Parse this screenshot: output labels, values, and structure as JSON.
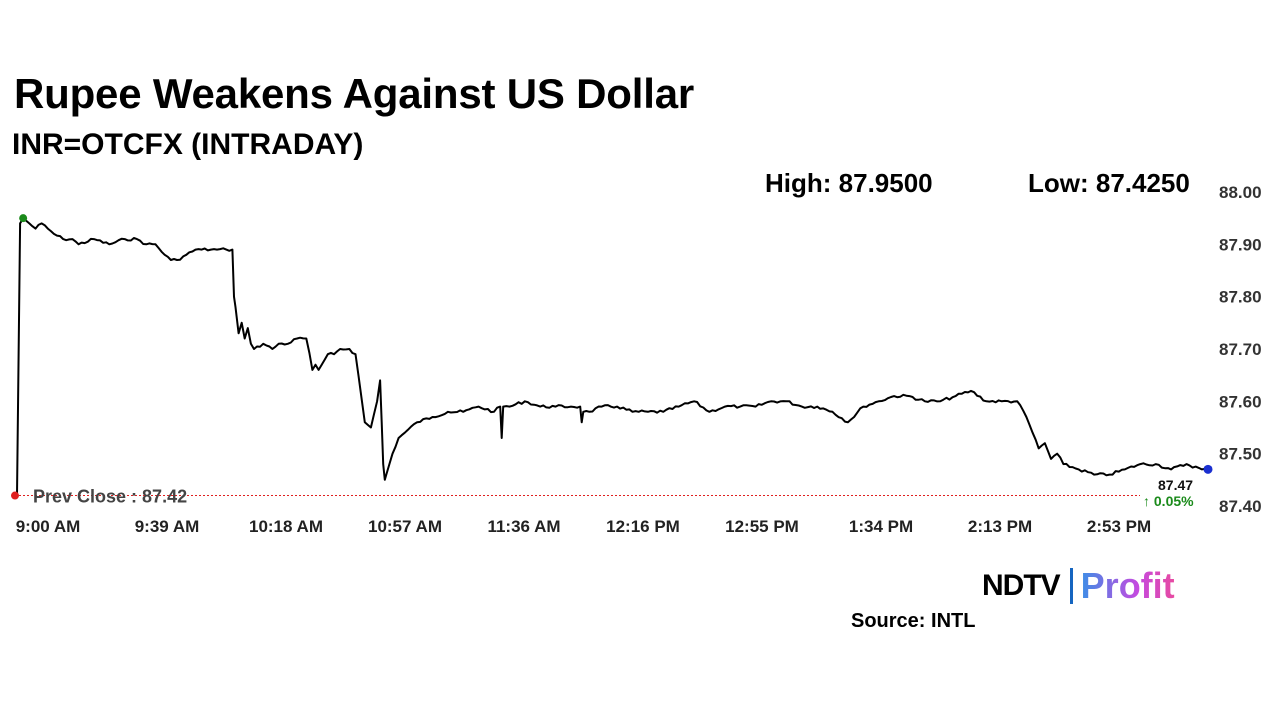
{
  "title": "Rupee Weakens Against US Dollar",
  "subtitle": "INR=OTCFX (INTRADAY)",
  "stats": {
    "high": "High: 87.9500",
    "low": "Low: 87.4250"
  },
  "colors": {
    "line": "#000000",
    "prev_close": "#e02020",
    "start_dot": "#1a8a1a",
    "end_dot": "#1a2fd0",
    "change_up": "#1a8a1a"
  },
  "chart_data": {
    "type": "line",
    "title": "INR=OTCFX (INTRADAY)",
    "ylim": [
      87.4,
      88.0
    ],
    "yticks": [
      "88.00",
      "87.90",
      "87.80",
      "87.70",
      "87.60",
      "87.50",
      "87.40"
    ],
    "xticks": [
      "9:00 AM",
      "9:39 AM",
      "10:18 AM",
      "10:57 AM",
      "11:36 AM",
      "12:16 PM",
      "12:55 PM",
      "1:34 PM",
      "2:13 PM",
      "2:53 PM"
    ],
    "x_range_minutes": [
      0,
      387
    ],
    "prev_close": 87.42,
    "prev_close_label": "Prev Close : 87.42",
    "last_value": "87.47",
    "last_change": "↑ 0.05%",
    "grid": false,
    "series": [
      {
        "x": [
          0,
          1,
          2,
          4,
          6,
          8,
          10,
          12,
          15,
          18,
          20,
          25,
          30,
          35,
          39,
          42,
          45,
          48,
          50,
          52,
          55,
          58,
          60,
          63,
          65,
          68,
          70,
          70.5,
          71,
          72,
          73,
          74,
          75,
          76,
          77,
          80,
          83,
          85,
          88,
          91,
          94,
          96,
          97,
          98,
          99,
          100,
          101,
          103,
          105,
          108,
          110,
          113,
          115,
          117,
          118,
          118.5,
          119,
          119.5,
          120,
          121,
          122,
          124,
          126,
          130,
          135,
          140,
          145,
          150,
          155,
          157,
          157.5,
          158,
          160,
          165,
          170,
          175,
          180,
          183,
          183.5,
          184,
          186,
          190,
          195,
          200,
          205,
          210,
          215,
          220,
          225,
          230,
          235,
          240,
          245,
          250,
          255,
          260,
          265,
          270,
          275,
          280,
          285,
          290,
          295,
          300,
          305,
          310,
          315,
          320,
          325,
          328,
          330,
          332,
          334,
          336,
          338,
          340,
          345,
          350,
          355,
          360,
          365,
          370,
          375,
          380,
          385,
          387
        ],
        "y": [
          87.42,
          87.94,
          87.95,
          87.94,
          87.93,
          87.94,
          87.93,
          87.92,
          87.91,
          87.91,
          87.9,
          87.91,
          87.9,
          87.91,
          87.91,
          87.9,
          87.9,
          87.88,
          87.87,
          87.87,
          87.88,
          87.89,
          87.89,
          87.89,
          87.89,
          87.89,
          87.89,
          87.8,
          87.78,
          87.73,
          87.75,
          87.72,
          87.74,
          87.71,
          87.7,
          87.71,
          87.7,
          87.71,
          87.71,
          87.72,
          87.72,
          87.66,
          87.67,
          87.66,
          87.67,
          87.68,
          87.69,
          87.69,
          87.7,
          87.7,
          87.69,
          87.56,
          87.55,
          87.6,
          87.64,
          87.56,
          87.48,
          87.45,
          87.46,
          87.48,
          87.5,
          87.53,
          87.54,
          87.56,
          87.57,
          87.58,
          87.58,
          87.59,
          87.58,
          87.59,
          87.53,
          87.59,
          87.59,
          87.6,
          87.59,
          87.59,
          87.59,
          87.59,
          87.56,
          87.58,
          87.58,
          87.59,
          87.59,
          87.58,
          87.58,
          87.58,
          87.59,
          87.6,
          87.58,
          87.59,
          87.59,
          87.59,
          87.6,
          87.6,
          87.59,
          87.59,
          87.58,
          87.56,
          87.59,
          87.6,
          87.61,
          87.61,
          87.6,
          87.6,
          87.61,
          87.62,
          87.6,
          87.6,
          87.6,
          87.57,
          87.54,
          87.51,
          87.52,
          87.49,
          87.5,
          87.48,
          87.47,
          87.46,
          87.46,
          87.47,
          87.48,
          87.48,
          87.47,
          87.48,
          87.47,
          87.47
        ]
      }
    ]
  }
}
